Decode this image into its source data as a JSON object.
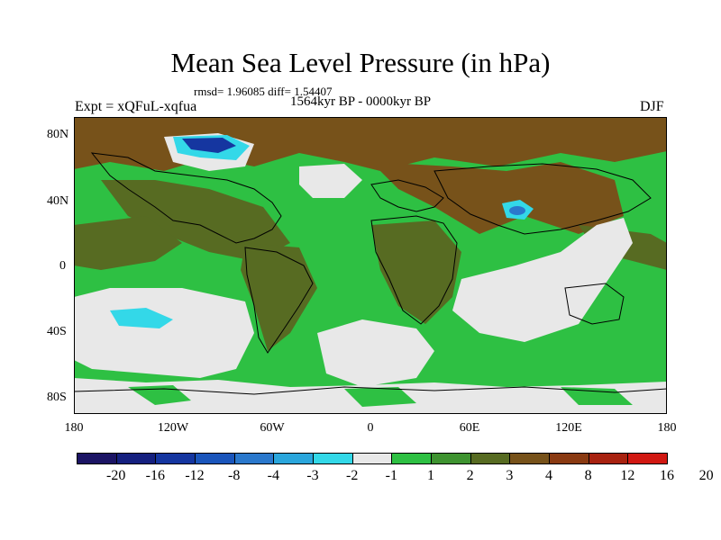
{
  "title": "Mean Sea Level Pressure (in hPa)",
  "stats_line": "rmsd= 1.96085 diff= 1.54407",
  "experiment": "Expt = xQFuL-xqfua",
  "period": "1564kyr BP - 0000kyr BP",
  "season": "DJF",
  "lat_labels": [
    "80N",
    "40N",
    "0",
    "40S",
    "80S"
  ],
  "lon_labels": [
    "180",
    "120W",
    "60W",
    "0",
    "60E",
    "120E",
    "180"
  ],
  "colorbar": {
    "colors": [
      "#1b1464",
      "#15207f",
      "#1536a0",
      "#1a55bb",
      "#2a78cc",
      "#2aa6dc",
      "#33d8e8",
      "#e8e8e8",
      "#2ec043",
      "#3e9330",
      "#576b22",
      "#77521a",
      "#8a3a12",
      "#a82210",
      "#d11812"
    ],
    "labels": [
      "-20",
      "-16",
      "-12",
      "-8",
      "-4",
      "-3",
      "-2",
      "-1",
      "1",
      "2",
      "3",
      "4",
      "8",
      "12",
      "16",
      "20"
    ]
  },
  "chart_data": {
    "type": "heatmap",
    "title": "Mean Sea Level Pressure (in hPa)",
    "subtitle": "1564kyr BP - 0000kyr BP",
    "variable": "MSLP difference",
    "units": "hPa",
    "rmsd": 1.96085,
    "diff": 1.54407,
    "season": "DJF",
    "xlim": [
      -180,
      180
    ],
    "ylim": [
      -90,
      90
    ],
    "levels": [
      -20,
      -16,
      -12,
      -8,
      -4,
      -3,
      -2,
      -1,
      1,
      2,
      3,
      4,
      8,
      12,
      16,
      20
    ]
  }
}
